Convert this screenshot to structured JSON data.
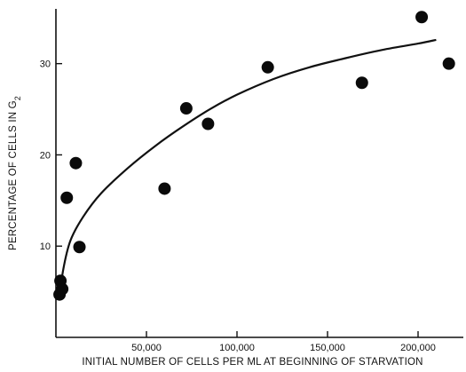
{
  "chart_data": {
    "type": "scatter",
    "xlabel": "INITIAL NUMBER OF CELLS PER ML AT BEGINNING OF STARVATION",
    "ylabel_prefix": "PERCENTAGE OF CELLS IN G",
    "ylabel_subscript": "2",
    "xlim": [
      0,
      225000
    ],
    "ylim": [
      0,
      36
    ],
    "x_ticks": [
      {
        "value": 50000,
        "label": "50,000"
      },
      {
        "value": 100000,
        "label": "100,000"
      },
      {
        "value": 150000,
        "label": "150,000"
      },
      {
        "value": 200000,
        "label": "200,000"
      }
    ],
    "y_ticks": [
      {
        "value": 10,
        "label": "10"
      },
      {
        "value": 20,
        "label": "20"
      },
      {
        "value": 30,
        "label": "30"
      }
    ],
    "grid": false,
    "points": [
      {
        "x": 2000,
        "y": 4.7
      },
      {
        "x": 2500,
        "y": 6.2
      },
      {
        "x": 3500,
        "y": 5.3
      },
      {
        "x": 6000,
        "y": 15.3
      },
      {
        "x": 11000,
        "y": 19.1
      },
      {
        "x": 13000,
        "y": 9.9
      },
      {
        "x": 60000,
        "y": 16.3
      },
      {
        "x": 72000,
        "y": 25.1
      },
      {
        "x": 84000,
        "y": 23.4
      },
      {
        "x": 117000,
        "y": 29.6
      },
      {
        "x": 169000,
        "y": 27.9
      },
      {
        "x": 202000,
        "y": 35.1
      },
      {
        "x": 217000,
        "y": 30.0
      }
    ],
    "trend_line": [
      {
        "x": 2000,
        "y": 4.2
      },
      {
        "x": 4000,
        "y": 7.4
      },
      {
        "x": 8000,
        "y": 10.6
      },
      {
        "x": 15000,
        "y": 13.2
      },
      {
        "x": 25000,
        "y": 15.8
      },
      {
        "x": 40000,
        "y": 18.6
      },
      {
        "x": 55000,
        "y": 21.0
      },
      {
        "x": 70000,
        "y": 23.1
      },
      {
        "x": 85000,
        "y": 25.0
      },
      {
        "x": 100000,
        "y": 26.6
      },
      {
        "x": 120000,
        "y": 28.3
      },
      {
        "x": 140000,
        "y": 29.6
      },
      {
        "x": 160000,
        "y": 30.6
      },
      {
        "x": 180000,
        "y": 31.5
      },
      {
        "x": 200000,
        "y": 32.2
      },
      {
        "x": 210000,
        "y": 32.6
      }
    ]
  }
}
